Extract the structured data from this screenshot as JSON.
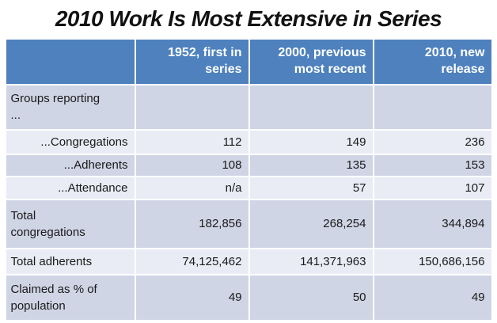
{
  "slide": {
    "title": "2010 Work Is Most Extensive in Series"
  },
  "table": {
    "headers": [
      "",
      "1952, first in\nseries",
      "2000, previous\nmost recent",
      "2010, new\nrelease"
    ],
    "rows": [
      {
        "label": "Groups reporting\n...",
        "values": [
          "",
          "",
          ""
        ]
      },
      {
        "label": "...Congregations",
        "values": [
          "112",
          "149",
          "236"
        ]
      },
      {
        "label": "...Adherents",
        "values": [
          "108",
          "135",
          "153"
        ]
      },
      {
        "label": "...Attendance",
        "values": [
          "n/a",
          "57",
          "107"
        ]
      },
      {
        "label": "Total\ncongregations",
        "values": [
          "182,856",
          "268,254",
          "344,894"
        ]
      },
      {
        "label": "Total adherents",
        "values": [
          "74,125,462",
          "141,371,963",
          "150,686,156"
        ]
      },
      {
        "label": "Claimed as % of\npopulation",
        "values": [
          "49",
          "50",
          "49"
        ]
      }
    ]
  },
  "colors": {
    "header_bg": "#4E81BD",
    "header_text": "#FFFFFF",
    "band_dark": "#D0D5E5",
    "band_light": "#E9ECF4",
    "grid_lines": "#FFFFFF",
    "body_text": "#1A1A1A",
    "title_text": "#121212"
  },
  "chart_data": {
    "type": "table",
    "title": "2010 Work Is Most Extensive in Series",
    "columns": [
      "",
      "1952, first in series",
      "2000, previous most recent",
      "2010, new release"
    ],
    "rows": [
      [
        "Groups reporting ...",
        "",
        "",
        ""
      ],
      [
        "...Congregations",
        "112",
        "149",
        "236"
      ],
      [
        "...Adherents",
        "108",
        "135",
        "153"
      ],
      [
        "...Attendance",
        "n/a",
        "57",
        "107"
      ],
      [
        "Total congregations",
        "182,856",
        "268,254",
        "344,894"
      ],
      [
        "Total adherents",
        "74,125,462",
        "141,371,963",
        "150,686,156"
      ],
      [
        "Claimed as % of population",
        "49",
        "50",
        "49"
      ]
    ],
    "notes": "Banded-row slide table; header row blue with white right-aligned text; all numeric cells right-aligned"
  }
}
